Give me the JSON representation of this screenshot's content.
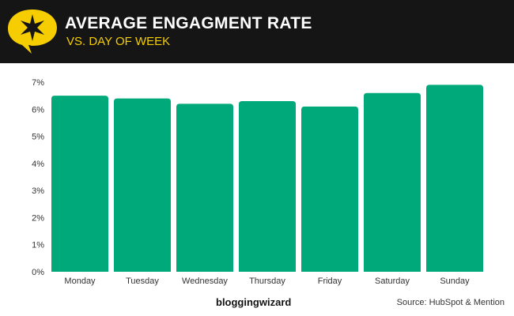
{
  "header": {
    "title": "AVERAGE ENGAGMENT RATE",
    "subtitle": "VS. DAY OF WEEK",
    "logo_icon": "star-speech-bubble-icon",
    "logo_color": "#f5cd00"
  },
  "chart_data": {
    "type": "bar",
    "title": "AVERAGE ENGAGMENT RATE",
    "subtitle": "VS. DAY OF WEEK",
    "categories": [
      "Monday",
      "Tuesday",
      "Wednesday",
      "Thursday",
      "Friday",
      "Saturday",
      "Sunday"
    ],
    "values": [
      6.5,
      6.4,
      6.2,
      6.3,
      6.1,
      6.6,
      6.9
    ],
    "unit": "%",
    "ylim": [
      0,
      7
    ],
    "yticks": [
      "0%",
      "1%",
      "2%",
      "3%",
      "4%",
      "5%",
      "6%",
      "7%"
    ],
    "grid": false,
    "bar_color": "#00a97a"
  },
  "footer": {
    "brand": "bloggingwizard",
    "source": "Source: HubSpot & Mention"
  }
}
